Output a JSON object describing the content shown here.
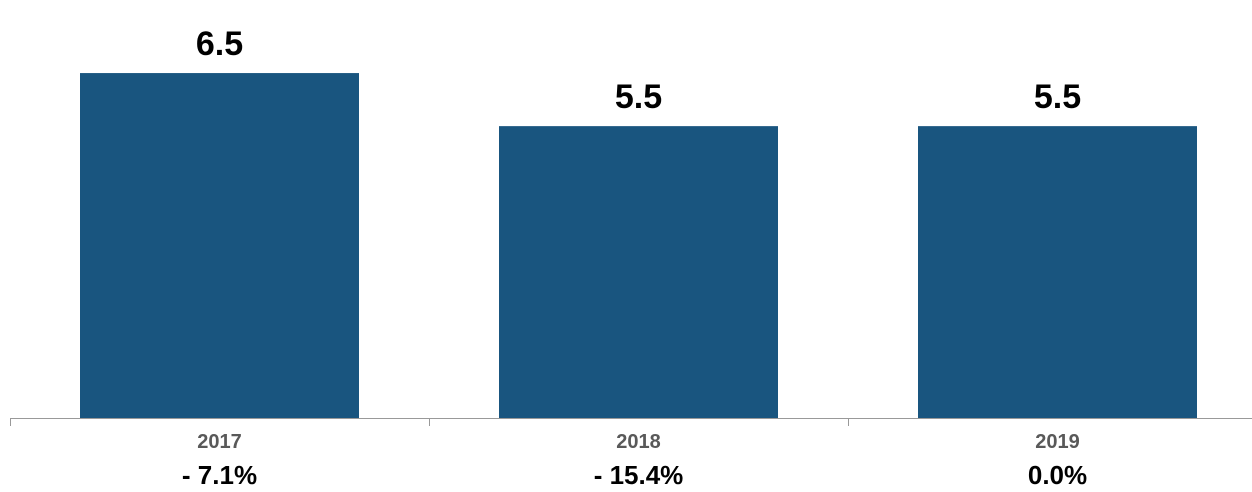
{
  "chart_data": {
    "type": "bar",
    "categories": [
      "2017",
      "2018",
      "2019"
    ],
    "values": [
      6.5,
      5.5,
      5.5
    ],
    "value_labels": [
      "6.5",
      "5.5",
      "5.5"
    ],
    "change_labels": [
      "- 7.1%",
      "- 15.4%",
      "0.0%"
    ],
    "title": "",
    "xlabel": "",
    "ylabel": "",
    "ylim": [
      0,
      7.5
    ],
    "grid": false,
    "colors": {
      "bar": "#19557F",
      "axis": "#999999"
    }
  }
}
